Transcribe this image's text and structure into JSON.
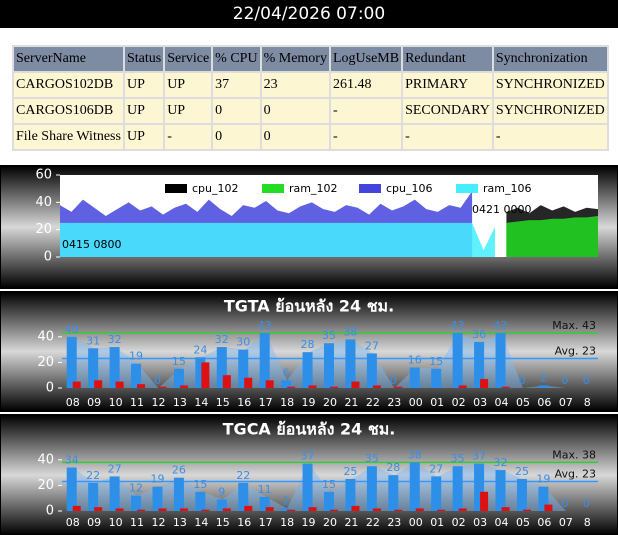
{
  "header": {
    "datetime": "22/04/2026 07:00"
  },
  "table": {
    "columns": [
      "ServerName",
      "Status",
      "Service",
      "% CPU",
      "% Memory",
      "LogUseMB",
      "Redundant",
      "Synchronization"
    ],
    "rows": [
      [
        "CARGOS102DB",
        "UP",
        "UP",
        "37",
        "23",
        "261.48",
        "PRIMARY",
        "SYNCHRONIZED"
      ],
      [
        "CARGOS106DB",
        "UP",
        "UP",
        "0",
        "0",
        "-",
        "SECONDARY",
        "SYNCHRONIZED"
      ],
      [
        "File Share Witness",
        "UP",
        "-",
        "0",
        "0",
        "-",
        "-",
        "-"
      ]
    ]
  },
  "chart_data": [
    {
      "type": "area",
      "ylim": [
        0,
        60
      ],
      "yticks": [
        0,
        20,
        40,
        60
      ],
      "annotations": [
        "0415 0800",
        "0421 0000"
      ],
      "series": [
        {
          "name": "cpu_102",
          "color": "#000000",
          "values": [
            null,
            null,
            null,
            null,
            null,
            null,
            null,
            null,
            null,
            null,
            null,
            null,
            null,
            null,
            null,
            null,
            null,
            null,
            null,
            null,
            null,
            null,
            null,
            null,
            null,
            null,
            null,
            null,
            null,
            null,
            null,
            null,
            null,
            null,
            null,
            null,
            null,
            null,
            null,
            33,
            36,
            32,
            38,
            34,
            37,
            33,
            36,
            35
          ]
        },
        {
          "name": "ram_102",
          "color": "#22dd22",
          "values": [
            null,
            null,
            null,
            null,
            null,
            null,
            null,
            null,
            null,
            null,
            null,
            null,
            null,
            null,
            null,
            null,
            null,
            null,
            null,
            null,
            null,
            null,
            null,
            null,
            null,
            null,
            null,
            null,
            null,
            null,
            null,
            null,
            null,
            null,
            null,
            null,
            null,
            null,
            null,
            25,
            26,
            27,
            27,
            28,
            28,
            29,
            29,
            30
          ]
        },
        {
          "name": "cpu_106",
          "color": "#4444dd",
          "values": [
            38,
            33,
            42,
            36,
            30,
            35,
            40,
            34,
            37,
            31,
            36,
            39,
            33,
            42,
            35,
            30,
            38,
            36,
            41,
            34,
            32,
            37,
            40,
            35,
            33,
            38,
            36,
            31,
            39,
            34,
            37,
            42,
            35,
            33,
            38,
            36,
            48,
            null,
            null,
            null,
            null,
            null,
            null,
            null,
            null,
            null,
            null,
            null
          ]
        },
        {
          "name": "ram_106",
          "color": "#44eeff",
          "values": [
            25,
            25,
            25,
            25,
            25,
            25,
            25,
            25,
            25,
            25,
            25,
            25,
            25,
            25,
            25,
            25,
            25,
            25,
            25,
            25,
            25,
            25,
            25,
            25,
            25,
            25,
            25,
            25,
            25,
            25,
            25,
            25,
            25,
            25,
            25,
            25,
            25,
            5,
            22,
            null,
            null,
            null,
            null,
            null,
            null,
            null,
            null,
            null
          ]
        }
      ]
    },
    {
      "type": "bar",
      "title": "TGTA ย้อนหลัง 24 ชม.",
      "ylim": [
        0,
        50
      ],
      "yticks": [
        0,
        20,
        40
      ],
      "categories": [
        "08",
        "09",
        "10",
        "11",
        "12",
        "13",
        "14",
        "15",
        "16",
        "17",
        "18",
        "19",
        "20",
        "21",
        "22",
        "23",
        "00",
        "01",
        "02",
        "03",
        "04",
        "05",
        "06",
        "07",
        "8"
      ],
      "series": [
        {
          "color": "#2e8fe8",
          "values": [
            40,
            31,
            32,
            19,
            0,
            15,
            24,
            32,
            30,
            43,
            6,
            28,
            35,
            38,
            27,
            0,
            16,
            15,
            43,
            36,
            43,
            0,
            2,
            0,
            0
          ]
        },
        {
          "color": "#dd1111",
          "values": [
            5,
            6,
            5,
            3,
            1,
            2,
            20,
            10,
            8,
            6,
            1,
            2,
            1,
            5,
            2,
            1,
            0,
            0,
            2,
            7,
            1,
            0,
            0,
            0,
            0
          ]
        }
      ],
      "reference_lines": [
        {
          "label": "Max. 43",
          "value": 43,
          "color": "#33cc33"
        },
        {
          "label": "Avg. 23",
          "value": 23,
          "color": "#3399ff"
        }
      ]
    },
    {
      "type": "bar",
      "title": "TGCA ย้อนหลัง 24 ชม.",
      "ylim": [
        0,
        50
      ],
      "yticks": [
        0,
        20,
        40
      ],
      "categories": [
        "08",
        "09",
        "10",
        "11",
        "12",
        "13",
        "14",
        "15",
        "16",
        "17",
        "18",
        "19",
        "20",
        "21",
        "22",
        "23",
        "00",
        "01",
        "02",
        "03",
        "04",
        "05",
        "06",
        "07",
        "8"
      ],
      "series": [
        {
          "color": "#2e8fe8",
          "values": [
            34,
            22,
            27,
            12,
            19,
            26,
            15,
            9,
            22,
            11,
            2,
            37,
            15,
            25,
            35,
            28,
            38,
            27,
            35,
            37,
            32,
            25,
            19,
            0,
            0
          ]
        },
        {
          "color": "#dd1111",
          "values": [
            4,
            3,
            2,
            1,
            2,
            2,
            1,
            2,
            4,
            3,
            1,
            3,
            1,
            4,
            2,
            1,
            2,
            1,
            2,
            15,
            3,
            1,
            5,
            0,
            0
          ]
        }
      ],
      "reference_lines": [
        {
          "label": "Max. 38",
          "value": 38,
          "color": "#33cc33"
        },
        {
          "label": "Avg. 23",
          "value": 23,
          "color": "#3399ff"
        }
      ]
    }
  ]
}
